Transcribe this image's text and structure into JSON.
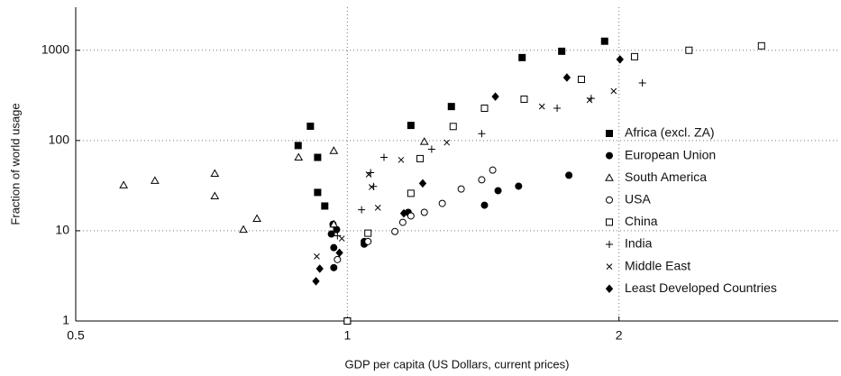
{
  "chart_data": {
    "type": "scatter",
    "x_label": "GDP per capita (US Dollars, current prices)",
    "y_label": "Fraction of world usage",
    "xlim": [
      0.5,
      3.5
    ],
    "ylim": [
      1,
      3000
    ],
    "xticks": [
      0.5,
      1,
      2
    ],
    "yticks": [
      1,
      10,
      100,
      1000
    ],
    "x_log": true,
    "y_log": true,
    "grid": true,
    "legend": "right",
    "series": [
      {
        "name": "Africa (excl. ZA)",
        "color": "#000000",
        "marker": "square",
        "filled": true,
        "x": [
          0.882,
          0.91,
          0.927,
          0.927,
          0.944,
          1.0,
          1.176,
          1.304,
          1.562,
          1.728,
          1.928
        ],
        "values": [
          88,
          144,
          65,
          26.6,
          18.8,
          1,
          147,
          238,
          830,
          975,
          1260
        ]
      },
      {
        "name": "European Union",
        "color": "#000000",
        "marker": "circle",
        "filled": true,
        "x": [
          0.964,
          0.96,
          0.973,
          0.966,
          0.966,
          1.044,
          1.044,
          1.168,
          1.419,
          1.469,
          1.548,
          1.76
        ],
        "values": [
          11.8,
          9.2,
          10.3,
          6.5,
          3.9,
          7.6,
          7.1,
          16,
          19.2,
          27.8,
          31.2,
          41.2
        ]
      },
      {
        "name": "South America",
        "color": "#000000",
        "marker": "triangle",
        "filled": false,
        "x": [
          0.565,
          0.612,
          0.713,
          0.713,
          0.794,
          0.767,
          0.883,
          0.966,
          0.966,
          1.217
        ],
        "values": [
          32,
          35.9,
          43,
          24.2,
          13.6,
          10.3,
          65,
          77,
          11.8,
          97
        ]
      },
      {
        "name": "USA",
        "color": "#000000",
        "marker": "circle",
        "filled": false,
        "x": [
          0.975,
          1.054,
          1.129,
          1.152,
          1.176,
          1.217,
          1.274,
          1.337,
          1.409,
          1.449
        ],
        "values": [
          4.8,
          7.6,
          9.8,
          12.4,
          14.6,
          16,
          20.1,
          29,
          36.7,
          47
        ]
      },
      {
        "name": "China",
        "color": "#000000",
        "marker": "square",
        "filled": false,
        "x": [
          1.0,
          1.054,
          1.176,
          1.204,
          1.31,
          1.419,
          1.57,
          1.817,
          2.081,
          2.391,
          2.877
        ],
        "values": [
          1,
          9.4,
          26,
          63,
          143,
          228,
          287,
          476,
          849,
          1000,
          1120
        ]
      },
      {
        "name": "India",
        "color": "#000000",
        "marker": "plus",
        "filled": false,
        "x": [
          0.975,
          1.037,
          1.061,
          1.069,
          1.098,
          1.24,
          1.409,
          1.708,
          1.863,
          2.123
        ],
        "values": [
          8.8,
          17.1,
          44,
          31,
          65,
          80,
          119,
          228,
          293,
          434
        ]
      },
      {
        "name": "Middle East",
        "color": "#000000",
        "marker": "cross",
        "filled": false,
        "x": [
          0.925,
          0.986,
          1.056,
          1.064,
          1.081,
          1.147,
          1.289,
          1.643,
          1.855,
          1.973
        ],
        "values": [
          5.2,
          8.2,
          42,
          30.5,
          18,
          61,
          95,
          238,
          280,
          353
        ]
      },
      {
        "name": "Least Developed Countries",
        "color": "#000000",
        "marker": "diamond",
        "filled": true,
        "x": [
          0.923,
          0.932,
          0.98,
          1.155,
          1.212,
          1.459,
          1.751,
          2.005
        ],
        "values": [
          2.76,
          3.8,
          5.7,
          15.6,
          33.5,
          307,
          499,
          792
        ]
      }
    ]
  }
}
